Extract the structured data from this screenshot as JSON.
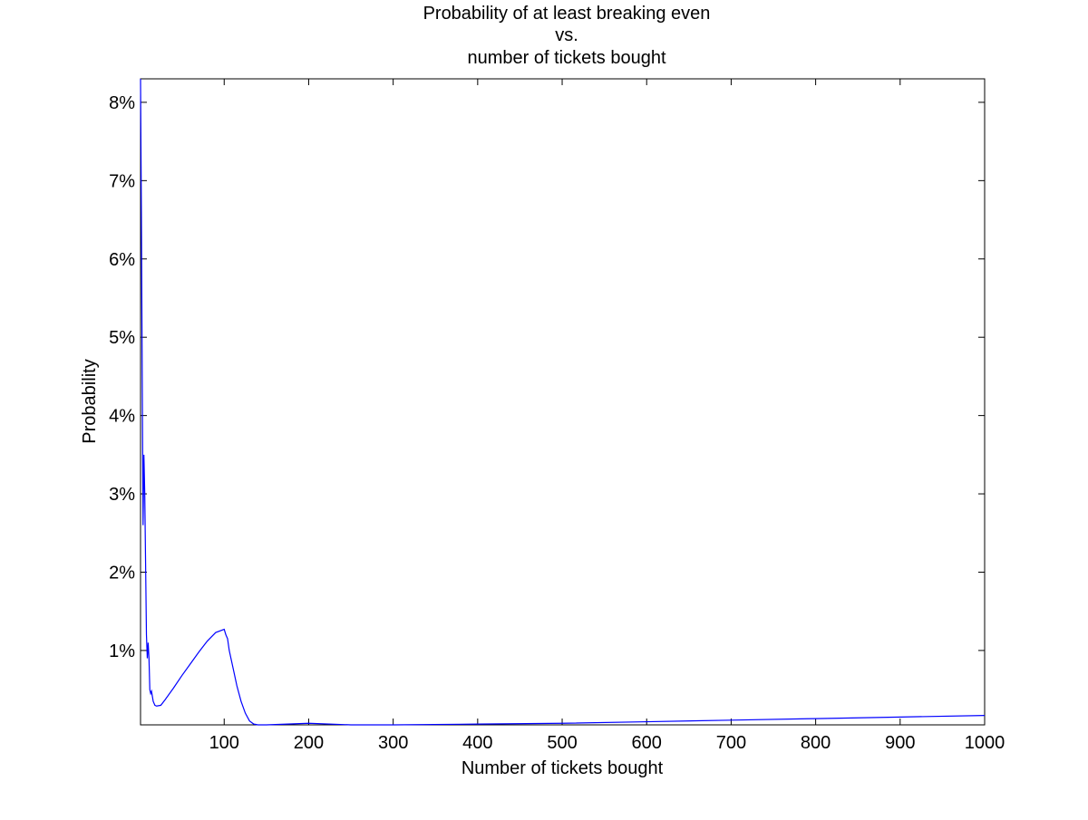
{
  "chart_data": {
    "type": "line",
    "title_lines": [
      "Probability of at least breaking even",
      "vs.",
      "number of tickets bought"
    ],
    "xlabel": "Number of tickets bought",
    "ylabel": "Probability",
    "xlim": [
      1,
      1000
    ],
    "ylim": [
      0.0005,
      0.083
    ],
    "x_ticks": [
      100,
      200,
      300,
      400,
      500,
      600,
      700,
      800,
      900,
      1000
    ],
    "x_tick_labels": [
      "100",
      "200",
      "300",
      "400",
      "500",
      "600",
      "700",
      "800",
      "900",
      "1000"
    ],
    "y_ticks": [
      0.01,
      0.02,
      0.03,
      0.04,
      0.05,
      0.06,
      0.07,
      0.08
    ],
    "y_tick_labels": [
      "1%",
      "2%",
      "3%",
      "4%",
      "5%",
      "6%",
      "7%",
      "8%"
    ],
    "grid": false,
    "box": true,
    "line_color": "#0000ff",
    "series": [
      {
        "x": [
          1,
          2,
          3,
          4,
          5,
          6,
          7,
          8,
          9,
          10,
          11,
          12,
          13,
          14,
          16,
          18,
          20,
          25,
          30,
          40,
          50,
          60,
          70,
          80,
          90,
          100,
          102,
          104,
          106,
          110,
          115,
          120,
          125,
          130,
          135,
          140,
          150,
          200,
          250,
          300,
          400,
          500,
          600,
          700,
          800,
          900,
          1000
        ],
        "y": [
          0.083,
          0.066,
          0.045,
          0.026,
          0.035,
          0.03,
          0.021,
          0.012,
          0.009,
          0.011,
          0.009,
          0.005,
          0.0045,
          0.0048,
          0.0035,
          0.003,
          0.0029,
          0.003,
          0.0037,
          0.0052,
          0.0068,
          0.0083,
          0.0098,
          0.0112,
          0.0123,
          0.0127,
          0.012,
          0.0115,
          0.01,
          0.008,
          0.0055,
          0.0035,
          0.002,
          0.001,
          0.0006,
          0.0005,
          0.0005,
          0.0007,
          0.0005,
          0.0005,
          0.0006,
          0.0007,
          0.0009,
          0.0011,
          0.0013,
          0.0015,
          0.0017
        ]
      }
    ]
  }
}
